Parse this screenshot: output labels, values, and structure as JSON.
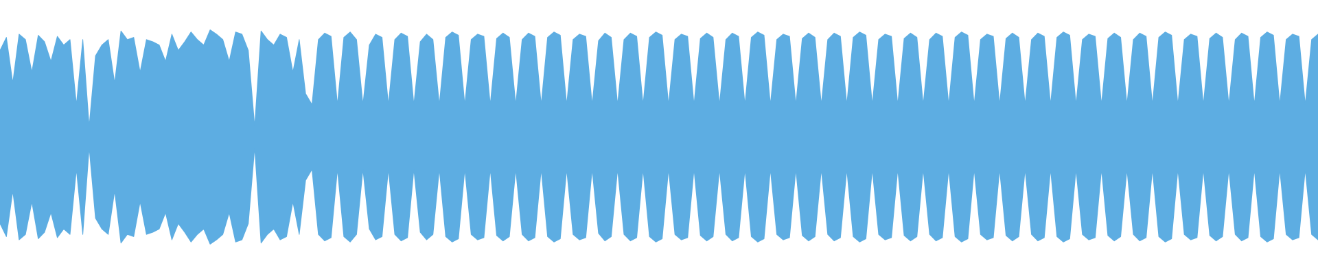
{
  "chart_data": {
    "type": "area",
    "title": "",
    "xlabel": "",
    "ylabel": "",
    "ylim": [
      -1,
      1
    ],
    "symmetric": true,
    "grid": false,
    "color": "#5dade2",
    "envelope": [
      0.8,
      0.92,
      0.5,
      0.95,
      0.9,
      0.6,
      0.94,
      0.88,
      0.7,
      0.93,
      0.85,
      0.9,
      0.3,
      0.9,
      0.1,
      0.75,
      0.85,
      0.9,
      0.5,
      0.98,
      0.9,
      0.92,
      0.6,
      0.9,
      0.88,
      0.85,
      0.7,
      0.95,
      0.8,
      0.88,
      0.97,
      0.9,
      0.85,
      0.99,
      0.95,
      0.9,
      0.7,
      0.97,
      0.95,
      0.8,
      0.1,
      0.98,
      0.9,
      0.85,
      0.95,
      0.92,
      0.6,
      0.9,
      0.4,
      0.3,
      0.9,
      0.96,
      0.93,
      0.3,
      0.92,
      0.97,
      0.9,
      0.3,
      0.85,
      0.95,
      0.92,
      0.3,
      0.9,
      0.96,
      0.93,
      0.3,
      0.88,
      0.95,
      0.9,
      0.3,
      0.92,
      0.97,
      0.94,
      0.3,
      0.9,
      0.95,
      0.93,
      0.3,
      0.91,
      0.96,
      0.92,
      0.3,
      0.9,
      0.96,
      0.93,
      0.3,
      0.92,
      0.97,
      0.94,
      0.3,
      0.9,
      0.95,
      0.93,
      0.3,
      0.89,
      0.96,
      0.92,
      0.3,
      0.9,
      0.96,
      0.93,
      0.3,
      0.92,
      0.97,
      0.94,
      0.3,
      0.9,
      0.95,
      0.93,
      0.3,
      0.91,
      0.96,
      0.92,
      0.3,
      0.9,
      0.96,
      0.93,
      0.3,
      0.92,
      0.97,
      0.94,
      0.3,
      0.9,
      0.95,
      0.93,
      0.3,
      0.91,
      0.96,
      0.92,
      0.3,
      0.9,
      0.96,
      0.93,
      0.3,
      0.92,
      0.97,
      0.94,
      0.3,
      0.9,
      0.95,
      0.93,
      0.3,
      0.91,
      0.96,
      0.92,
      0.3,
      0.9,
      0.96,
      0.93,
      0.3,
      0.92,
      0.97,
      0.94,
      0.3,
      0.9,
      0.95,
      0.93,
      0.3,
      0.91,
      0.96,
      0.92,
      0.3,
      0.9,
      0.96,
      0.93,
      0.3,
      0.92,
      0.97,
      0.94,
      0.3,
      0.9,
      0.95,
      0.93,
      0.3,
      0.91,
      0.96,
      0.92,
      0.3,
      0.9,
      0.96,
      0.93,
      0.3,
      0.92,
      0.97,
      0.94,
      0.3,
      0.9,
      0.95,
      0.93,
      0.3,
      0.91,
      0.96,
      0.92,
      0.3,
      0.9,
      0.96,
      0.93,
      0.3,
      0.92,
      0.97,
      0.94,
      0.3,
      0.9,
      0.95,
      0.93,
      0.3,
      0.9,
      0.95
    ]
  }
}
